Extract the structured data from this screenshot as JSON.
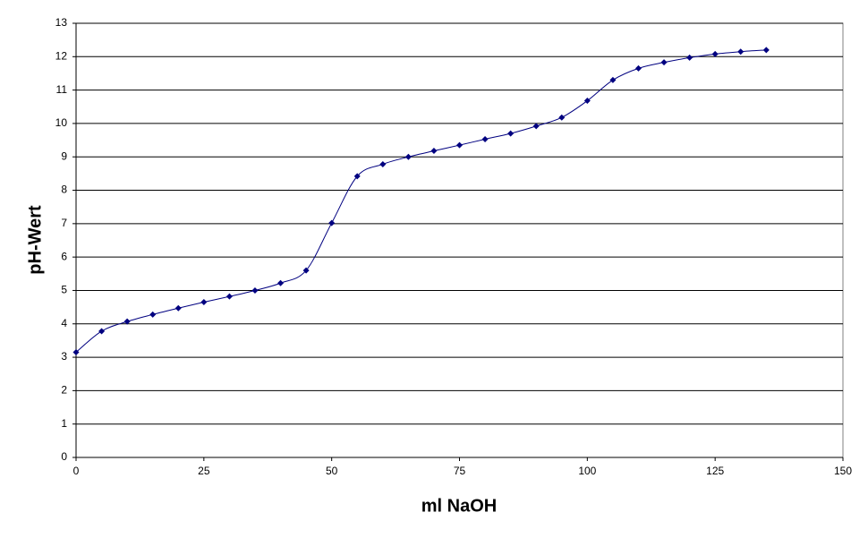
{
  "chart_data": {
    "type": "scatter",
    "x_label": "ml NaOH",
    "y_label": "pH-Wert",
    "x": [
      0,
      5,
      10,
      15,
      20,
      25,
      30,
      35,
      40,
      45,
      50,
      55,
      60,
      65,
      70,
      75,
      80,
      85,
      90,
      95,
      100,
      105,
      110,
      115,
      120,
      125,
      130,
      135
    ],
    "series": [
      {
        "color": "#000080",
        "values": [
          3.15,
          3.78,
          4.07,
          4.28,
          4.47,
          4.65,
          4.82,
          5.0,
          5.22,
          5.6,
          7.02,
          8.42,
          8.78,
          9.0,
          9.18,
          9.35,
          9.53,
          9.7,
          9.92,
          10.18,
          10.68,
          11.3,
          11.65,
          11.83,
          11.97,
          12.08,
          12.15,
          12.2
        ]
      }
    ],
    "xlim": [
      0,
      150
    ],
    "xticks": [
      0,
      25,
      50,
      75,
      100,
      125,
      150
    ],
    "ylim": [
      0,
      13
    ],
    "yticks": [
      0,
      1,
      2,
      3,
      4,
      5,
      6,
      7,
      8,
      9,
      10,
      11,
      12,
      13
    ],
    "grid": true,
    "smooth": true
  }
}
